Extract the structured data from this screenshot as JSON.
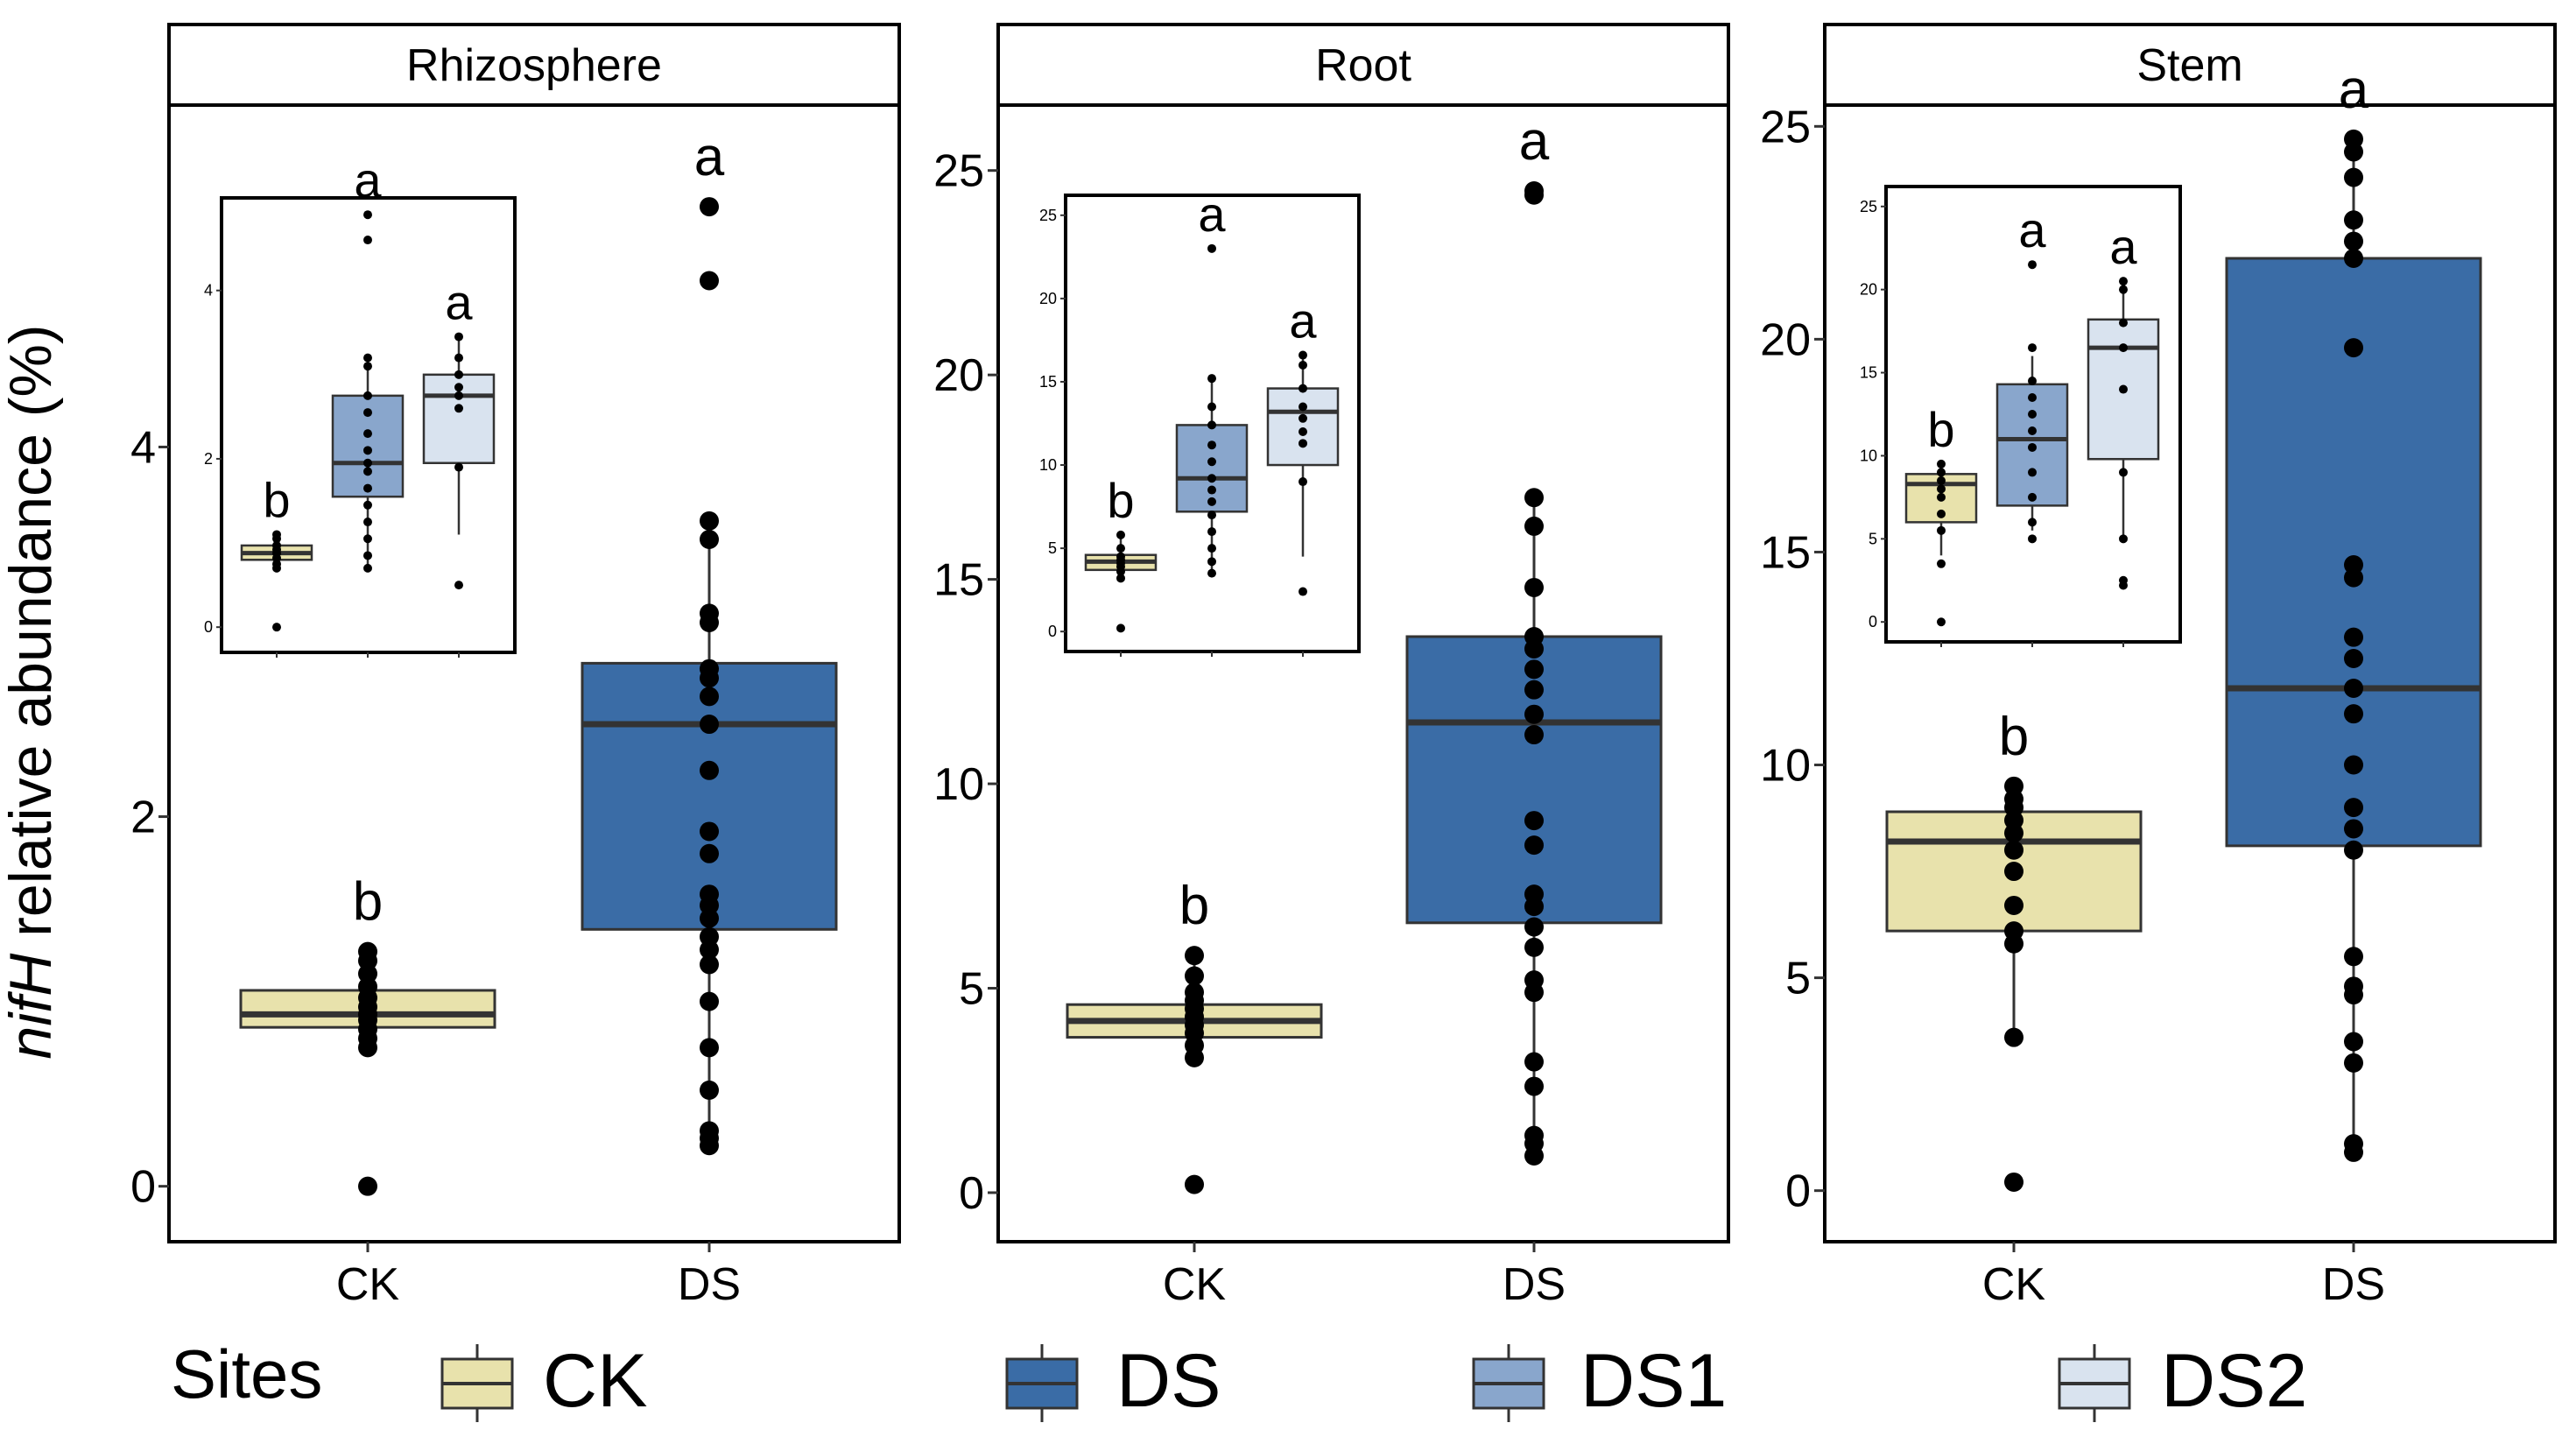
{
  "y_axis_label": {
    "italic": "nifH",
    "rest": " relative abundance (%)"
  },
  "legend": {
    "title": "Sites",
    "items": [
      {
        "key": "CK",
        "label": "CK",
        "color": "#e8e2ac"
      },
      {
        "key": "DS",
        "label": "DS",
        "color": "#3a6ca6"
      },
      {
        "key": "DS1",
        "label": "DS1",
        "color": "#89a6cc"
      },
      {
        "key": "DS2",
        "label": "DS2",
        "color": "#d9e3ef"
      }
    ]
  },
  "chart_data": [
    {
      "type": "boxplot",
      "title": "Rhizosphere",
      "categories": [
        "CK",
        "DS"
      ],
      "ylim": [
        -0.3,
        5.85
      ],
      "yticks": [
        0,
        2,
        4
      ],
      "boxes": [
        {
          "site": "CK",
          "q1": 0.86,
          "median": 0.93,
          "q3": 1.06,
          "whisker_low": 0.75,
          "whisker_high": 1.27,
          "letter": "b",
          "points": [
            0.0,
            0.75,
            0.8,
            0.85,
            0.9,
            0.93,
            0.97,
            1.02,
            1.08,
            1.15,
            1.22,
            1.27
          ]
        },
        {
          "site": "DS",
          "q1": 1.39,
          "median": 2.5,
          "q3": 2.83,
          "whisker_low": 0.22,
          "whisker_high": 3.6,
          "letter": "a",
          "points": [
            0.22,
            0.26,
            0.3,
            0.52,
            0.75,
            1.0,
            1.2,
            1.28,
            1.35,
            1.45,
            1.52,
            1.58,
            1.8,
            1.92,
            2.25,
            2.5,
            2.65,
            2.75,
            2.8,
            3.05,
            3.1,
            3.5,
            3.6,
            4.9,
            5.3
          ]
        }
      ],
      "inset": {
        "ylim": [
          -0.3,
          5.1
        ],
        "yticks": [
          0,
          2,
          4
        ],
        "boxes": [
          {
            "site": "CK",
            "q1": 0.8,
            "median": 0.88,
            "q3": 0.97,
            "whisker_low": 0.7,
            "whisker_high": 1.1,
            "letter": "b",
            "points": [
              0.0,
              0.7,
              0.75,
              0.82,
              0.88,
              0.92,
              0.97,
              1.05,
              1.1
            ]
          },
          {
            "site": "DS1",
            "q1": 1.55,
            "median": 1.95,
            "q3": 2.75,
            "whisker_low": 0.7,
            "whisker_high": 3.2,
            "letter": "a",
            "points": [
              0.7,
              0.85,
              1.05,
              1.25,
              1.45,
              1.65,
              1.85,
              1.95,
              2.1,
              2.3,
              2.55,
              2.75,
              3.1,
              3.2,
              4.6,
              4.9
            ]
          },
          {
            "site": "DS2",
            "q1": 1.95,
            "median": 2.75,
            "q3": 3.0,
            "whisker_low": 1.1,
            "whisker_high": 3.45,
            "letter": "a",
            "points": [
              0.5,
              1.9,
              2.6,
              2.75,
              2.85,
              3.0,
              3.2,
              3.45
            ]
          }
        ]
      }
    },
    {
      "type": "boxplot",
      "title": "Root",
      "categories": [
        "CK",
        "DS"
      ],
      "ylim": [
        -1.2,
        26.6
      ],
      "yticks": [
        0,
        5,
        10,
        15,
        20,
        25
      ],
      "boxes": [
        {
          "site": "CK",
          "q1": 3.8,
          "median": 4.2,
          "q3": 4.6,
          "whisker_low": 3.3,
          "whisker_high": 5.8,
          "letter": "b",
          "points": [
            0.2,
            3.3,
            3.6,
            3.9,
            4.1,
            4.3,
            4.5,
            4.7,
            4.9,
            5.3,
            5.8
          ]
        },
        {
          "site": "DS",
          "q1": 6.6,
          "median": 11.5,
          "q3": 13.6,
          "whisker_low": 0.9,
          "whisker_high": 17.0,
          "letter": "a",
          "points": [
            0.9,
            1.2,
            1.4,
            2.6,
            3.2,
            4.9,
            5.2,
            6.0,
            6.5,
            7.0,
            7.3,
            8.5,
            9.1,
            11.2,
            11.7,
            12.3,
            12.8,
            13.3,
            13.6,
            14.8,
            16.3,
            17.0,
            24.4,
            24.5
          ]
        }
      ],
      "inset": {
        "ylim": [
          -1.2,
          26.2
        ],
        "yticks": [
          0,
          5,
          10,
          15,
          20,
          25
        ],
        "boxes": [
          {
            "site": "CK",
            "q1": 3.7,
            "median": 4.2,
            "q3": 4.6,
            "whisker_low": 3.2,
            "whisker_high": 5.8,
            "letter": "b",
            "points": [
              0.2,
              3.2,
              3.6,
              3.9,
              4.1,
              4.3,
              4.5,
              5.0,
              5.8
            ]
          },
          {
            "site": "DS1",
            "q1": 7.2,
            "median": 9.2,
            "q3": 12.4,
            "whisker_low": 3.5,
            "whisker_high": 15.2,
            "letter": "a",
            "points": [
              3.5,
              4.2,
              5.0,
              6.0,
              7.0,
              7.8,
              8.5,
              9.2,
              10.2,
              11.2,
              12.4,
              13.5,
              15.2,
              23.0
            ]
          },
          {
            "site": "DS2",
            "q1": 10.0,
            "median": 13.2,
            "q3": 14.6,
            "whisker_low": 4.5,
            "whisker_high": 16.6,
            "letter": "a",
            "points": [
              2.4,
              9.0,
              11.3,
              12.0,
              12.8,
              13.5,
              14.6,
              16.0,
              16.6
            ]
          }
        ]
      }
    },
    {
      "type": "boxplot",
      "title": "Stem",
      "categories": [
        "CK",
        "DS"
      ],
      "ylim": [
        -1.2,
        25.5
      ],
      "yticks": [
        0,
        5,
        10,
        15,
        20,
        25
      ],
      "boxes": [
        {
          "site": "CK",
          "q1": 6.1,
          "median": 8.2,
          "q3": 8.9,
          "whisker_low": 3.6,
          "whisker_high": 9.5,
          "letter": "b",
          "points": [
            0.2,
            3.6,
            5.8,
            6.1,
            6.7,
            7.5,
            8.0,
            8.4,
            8.7,
            9.0,
            9.2,
            9.5
          ]
        },
        {
          "site": "DS",
          "q1": 8.1,
          "median": 11.8,
          "q3": 21.9,
          "whisker_low": 0.9,
          "whisker_high": 24.7,
          "letter": "a",
          "points": [
            0.9,
            1.1,
            3.0,
            3.5,
            4.6,
            4.8,
            5.5,
            8.0,
            8.5,
            9.0,
            10.0,
            11.2,
            11.8,
            12.5,
            13.0,
            14.4,
            14.7,
            19.8,
            21.9,
            22.3,
            22.8,
            23.8,
            24.4,
            24.7
          ]
        }
      ],
      "inset": {
        "ylim": [
          -1.2,
          26.2
        ],
        "yticks": [
          0,
          5,
          10,
          15,
          20,
          25
        ],
        "boxes": [
          {
            "site": "CK",
            "q1": 6.0,
            "median": 8.3,
            "q3": 8.9,
            "whisker_low": 4.0,
            "whisker_high": 9.5,
            "letter": "b",
            "points": [
              0.0,
              3.5,
              5.5,
              6.5,
              7.5,
              8.0,
              8.5,
              9.0,
              9.5
            ]
          },
          {
            "site": "DS1",
            "q1": 7.0,
            "median": 11.0,
            "q3": 14.3,
            "whisker_low": 5.5,
            "whisker_high": 16.0,
            "letter": "a",
            "points": [
              5.0,
              6.0,
              7.5,
              9.0,
              10.5,
              11.5,
              12.5,
              13.5,
              14.5,
              16.5,
              21.5
            ]
          },
          {
            "site": "DS2",
            "q1": 9.8,
            "median": 16.5,
            "q3": 18.2,
            "whisker_low": 5.0,
            "whisker_high": 20.5,
            "letter": "a",
            "points": [
              2.2,
              2.5,
              5.0,
              9.0,
              14.0,
              16.5,
              18.0,
              20.0,
              20.5
            ]
          }
        ]
      }
    }
  ]
}
